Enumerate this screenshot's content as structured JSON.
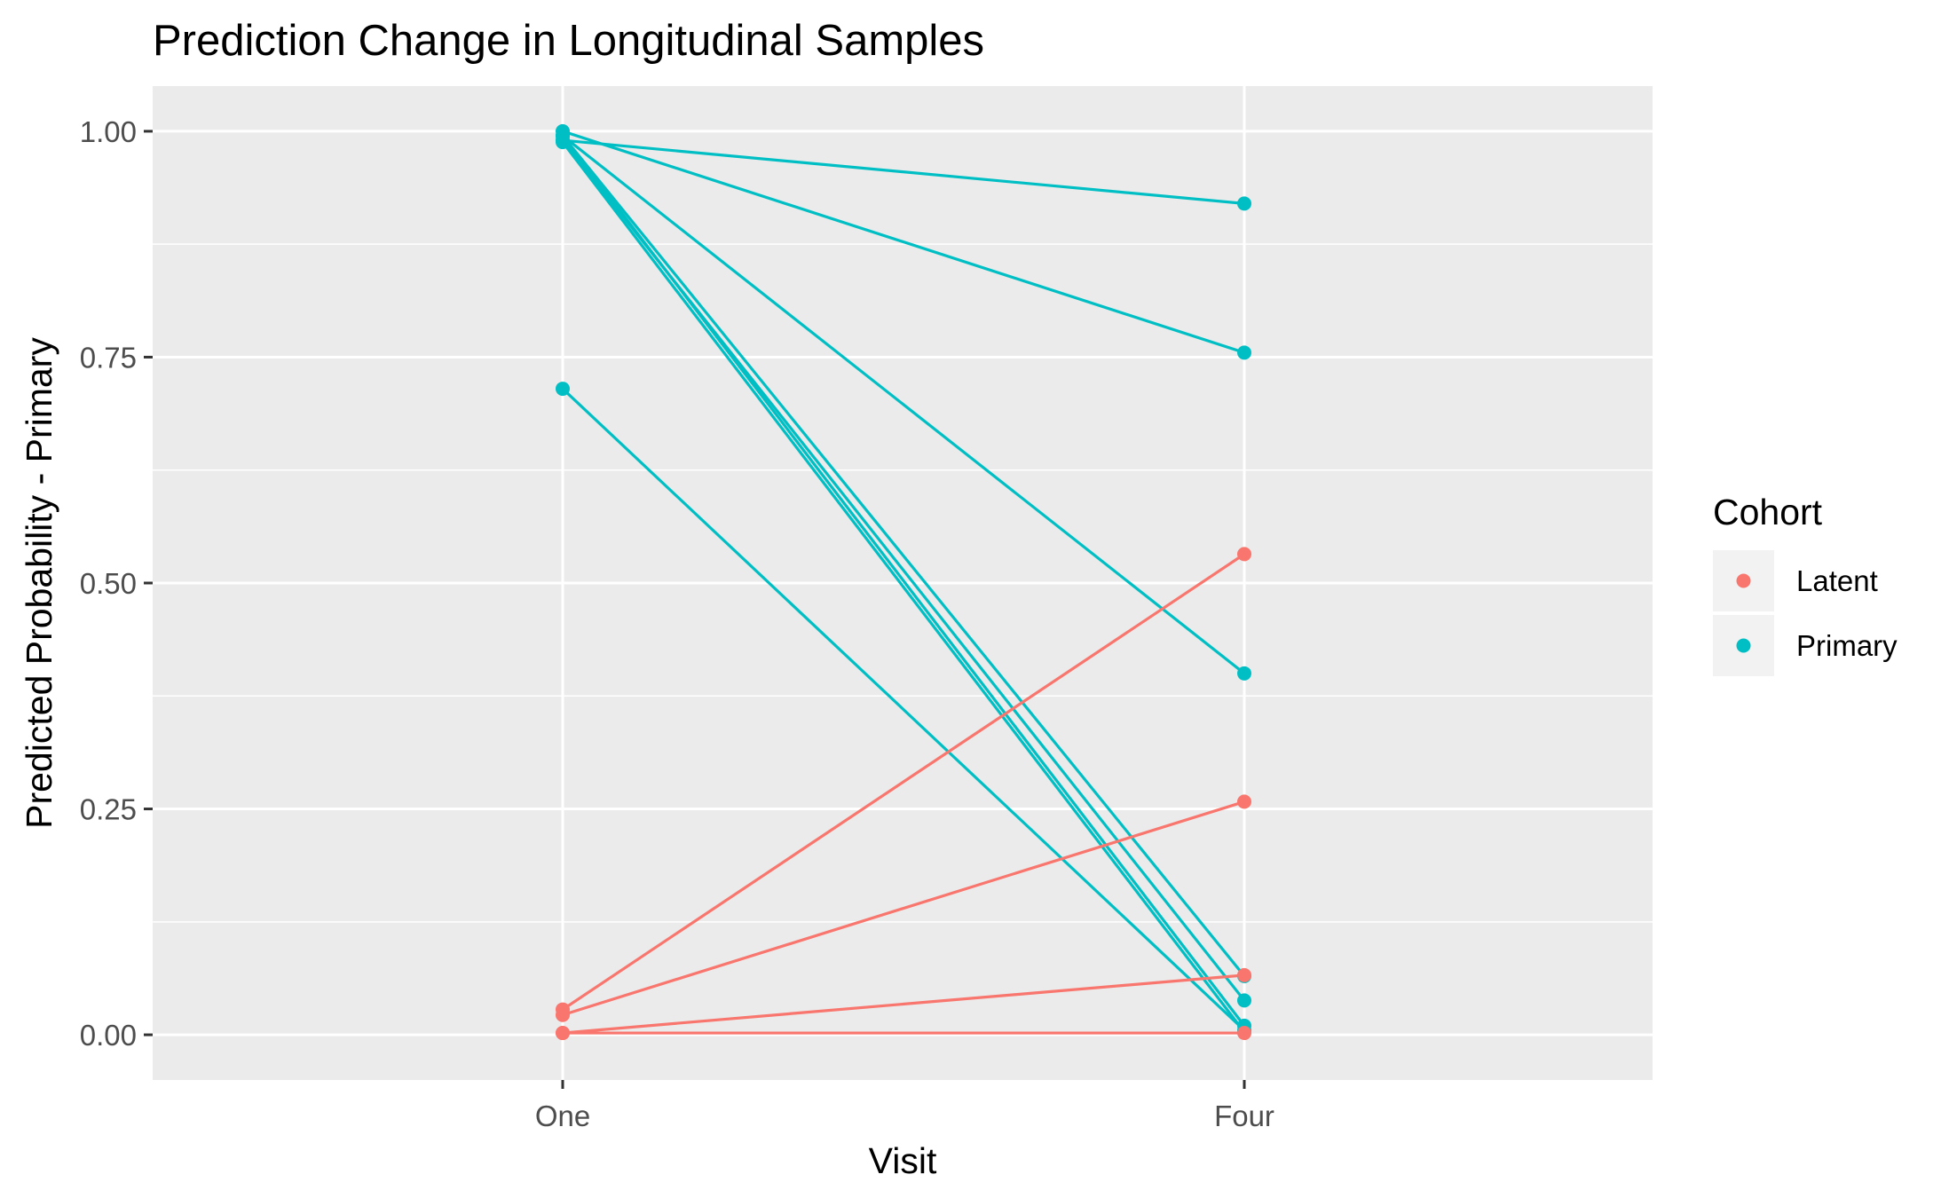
{
  "chart_data": {
    "type": "line",
    "title": "Prediction Change in Longitudinal Samples",
    "xlabel": "Visit",
    "ylabel": "Predicted Probability - Primary",
    "categories": [
      "One",
      "Four"
    ],
    "ylim": [
      -0.05,
      1.05
    ],
    "yticks": [
      0.0,
      0.25,
      0.5,
      0.75,
      1.0
    ],
    "ytick_labels": [
      "0.00",
      "0.25",
      "0.50",
      "0.75",
      "1.00"
    ],
    "grid": true,
    "legend": {
      "title": "Cohort",
      "position": "right",
      "entries": [
        {
          "label": "Latent",
          "color": "#F8766D"
        },
        {
          "label": "Primary",
          "color": "#00BFC4"
        }
      ]
    },
    "series": [
      {
        "cohort": "Primary",
        "values": [
          0.99,
          0.92
        ]
      },
      {
        "cohort": "Primary",
        "values": [
          1.0,
          0.755
        ]
      },
      {
        "cohort": "Primary",
        "values": [
          0.995,
          0.4
        ]
      },
      {
        "cohort": "Primary",
        "values": [
          0.995,
          0.065
        ]
      },
      {
        "cohort": "Primary",
        "values": [
          0.99,
          0.038
        ]
      },
      {
        "cohort": "Primary",
        "values": [
          0.995,
          0.01
        ]
      },
      {
        "cohort": "Primary",
        "values": [
          0.988,
          0.003
        ]
      },
      {
        "cohort": "Primary",
        "values": [
          0.715,
          0.005
        ]
      },
      {
        "cohort": "Latent",
        "values": [
          0.028,
          0.532
        ]
      },
      {
        "cohort": "Latent",
        "values": [
          0.022,
          0.258
        ]
      },
      {
        "cohort": "Latent",
        "values": [
          0.002,
          0.066
        ]
      },
      {
        "cohort": "Latent",
        "values": [
          0.002,
          0.002
        ]
      }
    ]
  }
}
